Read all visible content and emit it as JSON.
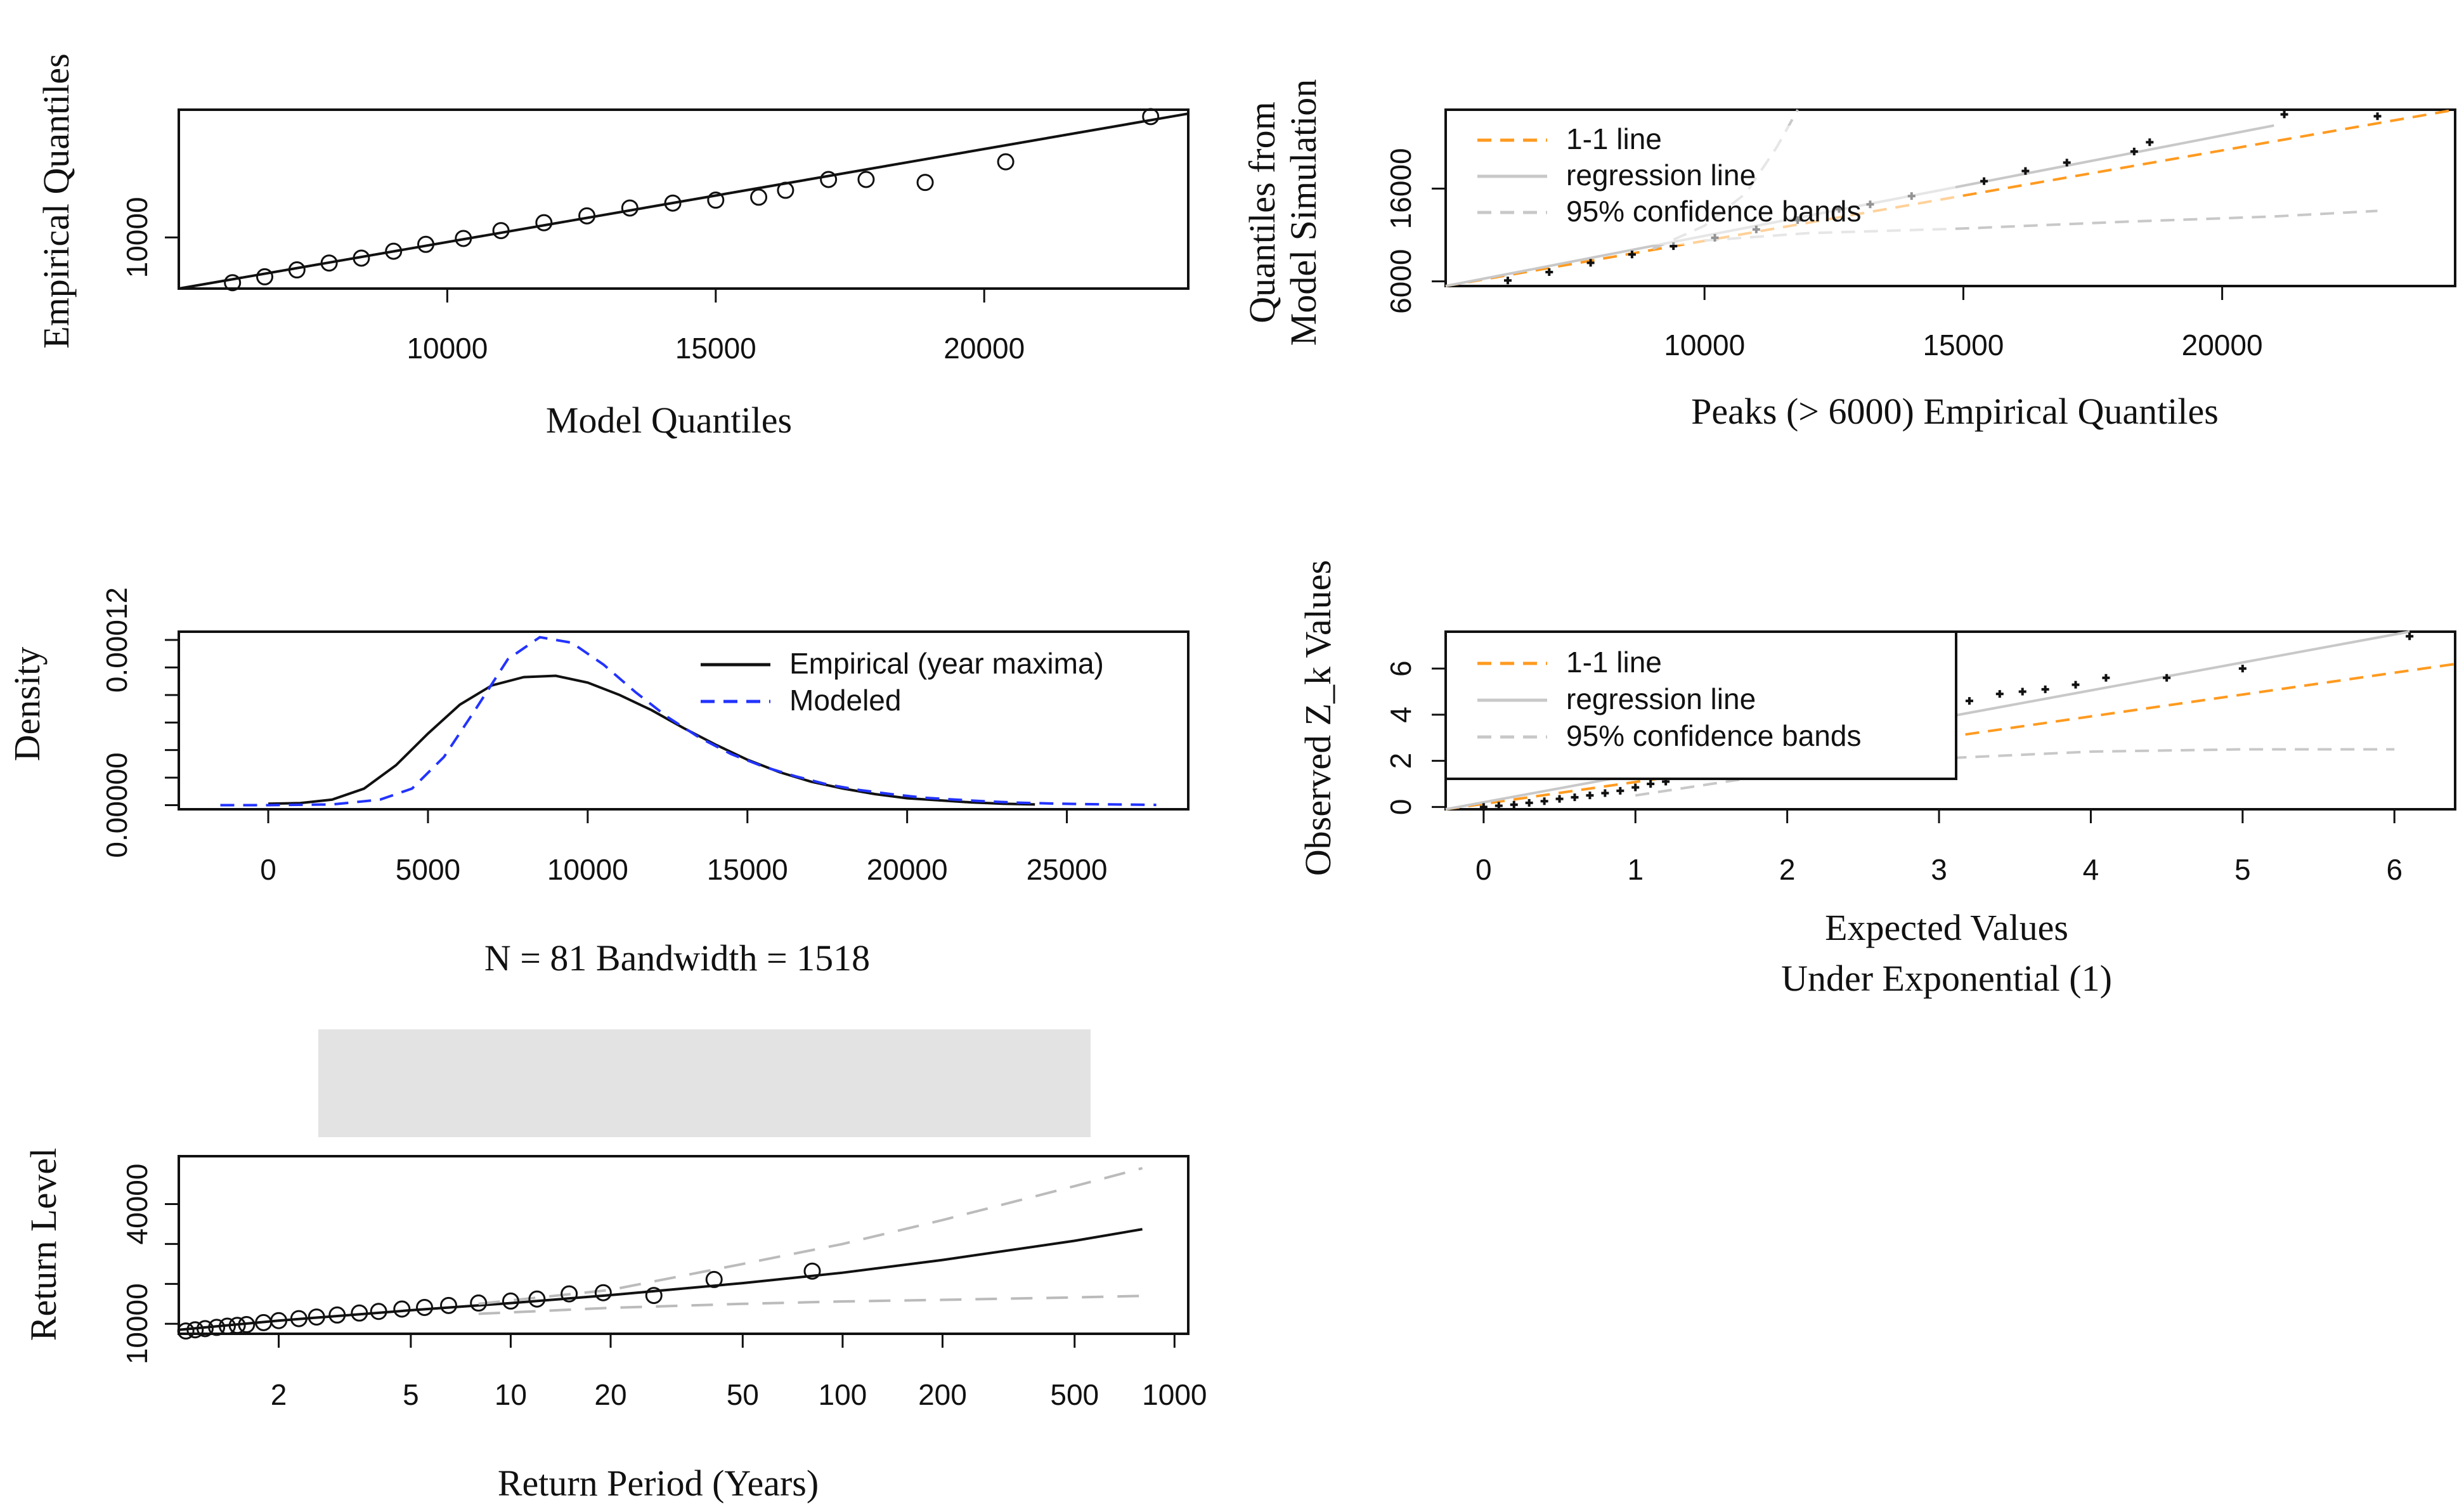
{
  "chart_data": [
    {
      "id": "qq_model",
      "type": "scatter",
      "xlabel": "Model Quantiles",
      "ylabel": "Empirical Quantiles",
      "xlim": [
        5000,
        23800
      ],
      "ylim": [
        4800,
        23000
      ],
      "xticks": [
        10000,
        15000,
        20000
      ],
      "yticks": [
        10000
      ],
      "xtick_labels": [
        "10000",
        "15000",
        "20000"
      ],
      "ytick_labels": [
        "10000"
      ],
      "series": [
        {
          "name": "points",
          "kind": "points",
          "marker": "circle",
          "x": [
            6000,
            6600,
            7200,
            7800,
            8400,
            9000,
            9600,
            10300,
            11000,
            11800,
            12600,
            13400,
            14200,
            15000,
            15800,
            16300,
            17100,
            17800,
            18900,
            20400,
            23100
          ],
          "y": [
            5400,
            6000,
            6700,
            7400,
            7900,
            8600,
            9300,
            9900,
            10700,
            11500,
            12200,
            13000,
            13500,
            13800,
            14100,
            14800,
            15900,
            15900,
            15600,
            17700,
            22300
          ]
        },
        {
          "name": "fit",
          "kind": "line",
          "color": "#111111",
          "dash": "",
          "x": [
            5000,
            23800
          ],
          "y": [
            4800,
            22600
          ]
        }
      ]
    },
    {
      "id": "qq_sim",
      "type": "scatter",
      "xlabel": "Peaks (> 6000) Empirical Quantiles",
      "ylabel": [
        "Quantiles from",
        "Model Simulation"
      ],
      "xlim": [
        5000,
        24500
      ],
      "ylim": [
        5500,
        24500
      ],
      "xticks": [
        10000,
        15000,
        20000
      ],
      "yticks": [
        6000,
        16000
      ],
      "xtick_labels": [
        "10000",
        "15000",
        "20000"
      ],
      "ytick_labels": [
        "6000",
        "16000"
      ],
      "legend": [
        {
          "label": "1-1 line",
          "color": "#ff9a1f",
          "dash": "22,14"
        },
        {
          "label": "regression line",
          "color": "#c8c8c8",
          "dash": ""
        },
        {
          "label": "95% confidence bands",
          "color": "#c8c8c8",
          "dash": "22,14"
        }
      ],
      "series": [
        {
          "name": "1-1 line",
          "kind": "line",
          "color": "#ff9a1f",
          "dash": "22,14",
          "x": [
            5000,
            24500
          ],
          "y": [
            5000,
            24500
          ]
        },
        {
          "name": "regression line",
          "kind": "line",
          "color": "#c8c8c8",
          "dash": "",
          "x": [
            5000,
            21000
          ],
          "y": [
            5300,
            22800
          ]
        },
        {
          "name": "upper band",
          "kind": "line",
          "color": "#c8c8c8",
          "dash": "22,14",
          "x": [
            9000,
            10000,
            10800,
            11400,
            11800
          ],
          "y": [
            9500,
            12000,
            15500,
            20500,
            24500
          ]
        },
        {
          "name": "lower band",
          "kind": "line",
          "color": "#c8c8c8",
          "dash": "22,14",
          "x": [
            10000,
            12000,
            15000,
            18000,
            21000,
            23000
          ],
          "y": [
            10400,
            11200,
            11700,
            12400,
            13000,
            13600
          ]
        },
        {
          "name": "points",
          "kind": "points",
          "marker": "plus",
          "x": [
            6200,
            7000,
            7800,
            8600,
            9400,
            10200,
            11000,
            11800,
            12600,
            13200,
            14000,
            15400,
            16200,
            17000,
            18300,
            18600,
            21200,
            23000
          ],
          "y": [
            6100,
            7000,
            8000,
            8900,
            9800,
            10700,
            11600,
            12600,
            13800,
            14300,
            15200,
            16800,
            17900,
            18800,
            20000,
            21000,
            24000,
            23800
          ]
        }
      ]
    },
    {
      "id": "density",
      "type": "line",
      "xlabel": "N = 81 Bandwidth = 1518",
      "ylabel": "Density",
      "xlim": [
        -2800,
        28800
      ],
      "ylim": [
        -3e-06,
        0.000126
      ],
      "xticks": [
        0,
        5000,
        10000,
        15000,
        20000,
        25000
      ],
      "yticks": [
        0,
        0.00012
      ],
      "xtick_labels": [
        "0",
        "5000",
        "10000",
        "15000",
        "20000",
        "25000"
      ],
      "ytick_labels": [
        "0.00000",
        "0.00012"
      ],
      "extra_ticks": [
        2e-05,
        4e-05,
        6e-05,
        8e-05,
        0.0001
      ],
      "legend": [
        {
          "label": "Empirical (year maxima)",
          "color": "#111111",
          "dash": ""
        },
        {
          "label": "Modeled",
          "color": "#2233ff",
          "dash": "22,14"
        }
      ],
      "series": [
        {
          "name": "Empirical (year maxima)",
          "kind": "line",
          "color": "#111111",
          "dash": "",
          "x": [
            0,
            1000,
            2000,
            3000,
            4000,
            5000,
            6000,
            7000,
            8000,
            9000,
            10000,
            11000,
            12000,
            13000,
            14000,
            15000,
            16000,
            17000,
            18000,
            19000,
            20000,
            21000,
            22000,
            23000,
            24000
          ],
          "y": [
            1e-06,
            1.5e-06,
            4e-06,
            1.2e-05,
            2.9e-05,
            5.2e-05,
            7.3e-05,
            8.7e-05,
            9.3e-05,
            9.4e-05,
            8.9e-05,
            8e-05,
            6.9e-05,
            5.6e-05,
            4.4e-05,
            3.3e-05,
            2.4e-05,
            1.7e-05,
            1.2e-05,
            8e-06,
            5e-06,
            3.5e-06,
            2e-06,
            1e-06,
            5e-07
          ]
        },
        {
          "name": "Modeled",
          "kind": "line",
          "color": "#2233ff",
          "dash": "22,14",
          "x": [
            -1500,
            0,
            2000,
            3500,
            4500,
            5500,
            6500,
            7500,
            8500,
            9500,
            10500,
            11500,
            12500,
            13500,
            14500,
            15500,
            16500,
            17500,
            18500,
            19500,
            20500,
            21500,
            22500,
            23500,
            24500,
            25500,
            26500,
            27800
          ],
          "y": [
            0,
            0,
            5e-07,
            4e-06,
            1.2e-05,
            3.5e-05,
            7e-05,
            0.000106,
            0.000122,
            0.000118,
            0.000102,
            8.2e-05,
            6.4e-05,
            4.9e-05,
            3.7e-05,
            2.8e-05,
            2.1e-05,
            1.5e-05,
            1.1e-05,
            8e-06,
            5.5e-06,
            4e-06,
            2.7e-06,
            1.8e-06,
            1.2e-06,
            8e-07,
            5e-07,
            2e-07
          ]
        }
      ]
    },
    {
      "id": "zk_qq",
      "type": "scatter",
      "xlabel": [
        "Expected Values",
        "Under Exponential (1)"
      ],
      "ylabel": "Observed Z_k Values",
      "xlim": [
        -0.25,
        6.4
      ],
      "ylim": [
        -0.1,
        7.6
      ],
      "xticks": [
        0,
        1,
        2,
        3,
        4,
        5,
        6
      ],
      "yticks": [
        0,
        2,
        4,
        6
      ],
      "xtick_labels": [
        "0",
        "1",
        "2",
        "3",
        "4",
        "5",
        "6"
      ],
      "ytick_labels": [
        "0",
        "2",
        "4",
        "6"
      ],
      "legend": [
        {
          "label": "1-1 line",
          "color": "#ff9a1f",
          "dash": "22,14"
        },
        {
          "label": "regression line",
          "color": "#c8c8c8",
          "dash": ""
        },
        {
          "label": "95% confidence bands",
          "color": "#c8c8c8",
          "dash": "22,14"
        }
      ],
      "series": [
        {
          "name": "1-1 line",
          "kind": "line",
          "color": "#ff9a1f",
          "dash": "22,14",
          "x": [
            -0.25,
            6.4
          ],
          "y": [
            -0.25,
            6.2
          ]
        },
        {
          "name": "regression line",
          "kind": "line",
          "color": "#c8c8c8",
          "dash": "",
          "x": [
            -0.25,
            6.1
          ],
          "y": [
            -0.3,
            7.8
          ]
        },
        {
          "name": "lower band",
          "kind": "line",
          "color": "#c8c8c8",
          "dash": "22,14",
          "x": [
            1.0,
            2.0,
            3.0,
            4.0,
            5.0,
            6.0
          ],
          "y": [
            0.5,
            1.5,
            2.1,
            2.4,
            2.5,
            2.5
          ]
        },
        {
          "name": "points",
          "kind": "points",
          "marker": "plus",
          "x": [
            0,
            0.1,
            0.2,
            0.3,
            0.4,
            0.5,
            0.6,
            0.7,
            0.8,
            0.9,
            1.0,
            1.1,
            1.2,
            3.2,
            3.4,
            3.55,
            3.7,
            3.9,
            4.1,
            4.5,
            5.0,
            6.1
          ],
          "y": [
            0,
            0.05,
            0.1,
            0.18,
            0.25,
            0.35,
            0.42,
            0.5,
            0.6,
            0.7,
            0.85,
            1.0,
            1.1,
            4.6,
            4.9,
            5.0,
            5.1,
            5.3,
            5.6,
            5.6,
            6.0,
            7.4
          ]
        }
      ]
    },
    {
      "id": "return_level",
      "type": "line",
      "xlabel": "Return Period (Years)",
      "ylabel": "Return Level",
      "xscale": "log",
      "xlim": [
        1.0,
        1100
      ],
      "ylim": [
        7500,
        52000
      ],
      "xticks": [
        2,
        5,
        10,
        20,
        50,
        100,
        200,
        500,
        1000
      ],
      "yticks": [
        10000,
        40000
      ],
      "xtick_labels": [
        "2",
        "5",
        "10",
        "20",
        "50",
        "100",
        "200",
        "500",
        "1000"
      ],
      "ytick_labels": [
        "10000",
        "40000"
      ],
      "extra_ticks": [
        20000,
        30000
      ],
      "series": [
        {
          "name": "return level",
          "kind": "line",
          "color": "#111111",
          "dash": "",
          "x": [
            1.0,
            2,
            5,
            10,
            20,
            50,
            100,
            200,
            500,
            800
          ],
          "y": [
            8500,
            10800,
            13400,
            15200,
            17200,
            20200,
            22800,
            26000,
            30800,
            33700
          ]
        },
        {
          "name": "upper band",
          "kind": "line",
          "color": "#bbbbbb",
          "dash": "34,22",
          "x": [
            8,
            20,
            50,
            100,
            200,
            500,
            800
          ],
          "y": [
            15000,
            18500,
            25000,
            30000,
            36000,
            44500,
            49000
          ]
        },
        {
          "name": "lower band",
          "kind": "line",
          "color": "#bbbbbb",
          "dash": "34,22",
          "x": [
            8,
            20,
            50,
            100,
            200,
            500,
            800
          ],
          "y": [
            12500,
            14000,
            15000,
            15600,
            16000,
            16600,
            17000
          ]
        },
        {
          "name": "points",
          "kind": "points",
          "marker": "circle",
          "x": [
            1.05,
            1.12,
            1.2,
            1.3,
            1.4,
            1.5,
            1.6,
            1.8,
            2.0,
            2.3,
            2.6,
            3.0,
            3.5,
            4.0,
            4.7,
            5.5,
            6.5,
            8.0,
            10,
            12,
            15,
            19,
            27,
            41,
            81
          ],
          "y": [
            8200,
            8500,
            8800,
            9100,
            9400,
            9600,
            9800,
            10300,
            10800,
            11300,
            11700,
            12200,
            12700,
            13100,
            13700,
            14100,
            14600,
            15200,
            15700,
            16200,
            17500,
            17800,
            17100,
            21100,
            23200
          ]
        }
      ]
    }
  ]
}
